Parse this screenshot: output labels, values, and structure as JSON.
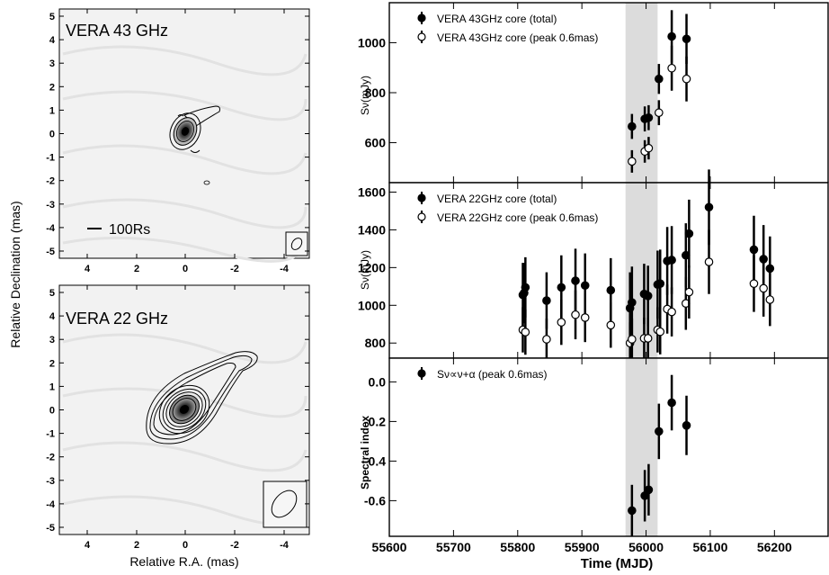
{
  "figure": {
    "maps": {
      "x_ticks": [
        "4",
        "2",
        "0",
        "-2",
        "-4"
      ],
      "y_ticks": [
        "5",
        "4",
        "3",
        "2",
        "1",
        "0",
        "-1",
        "-2",
        "-3",
        "-4",
        "-5"
      ],
      "xlabel": "Relative R.A. (mas)",
      "ylabel": "Relative Declination (mas)",
      "panels": [
        {
          "label": "VERA 43 GHz",
          "scalebar_label": "100Rs"
        },
        {
          "label": "VERA 22 GHz"
        }
      ]
    }
  },
  "chart_data": [
    {
      "type": "scatter",
      "panel": "flux-43ghz",
      "ylabel": "Sν(mJy)",
      "ylim": [
        440,
        1160
      ],
      "xlim": [
        55600,
        56285
      ],
      "y_ticks": [
        600,
        800,
        1000
      ],
      "shaded_x_range": [
        55968,
        56018
      ],
      "legend_position": "top-left",
      "series": [
        {
          "name": "VERA 43GHz core (total)",
          "marker": "filled",
          "points": [
            {
              "x": 55978,
              "y": 665,
              "err": 50
            },
            {
              "x": 55998,
              "y": 695,
              "err": 50
            },
            {
              "x": 56004,
              "y": 700,
              "err": 50
            },
            {
              "x": 56020,
              "y": 855,
              "err": 60
            },
            {
              "x": 56040,
              "y": 1025,
              "err": 105
            },
            {
              "x": 56063,
              "y": 1015,
              "err": 100
            }
          ]
        },
        {
          "name": "VERA 43GHz core (peak 0.6mas)",
          "marker": "open",
          "points": [
            {
              "x": 55978,
              "y": 525,
              "err": 45
            },
            {
              "x": 55998,
              "y": 565,
              "err": 45
            },
            {
              "x": 56004,
              "y": 578,
              "err": 45
            },
            {
              "x": 56020,
              "y": 720,
              "err": 50
            },
            {
              "x": 56040,
              "y": 898,
              "err": 90
            },
            {
              "x": 56063,
              "y": 855,
              "err": 90
            }
          ]
        }
      ]
    },
    {
      "type": "scatter",
      "panel": "flux-22ghz",
      "ylabel": "Sν(mJy)",
      "ylim": [
        720,
        1650
      ],
      "xlim": [
        55600,
        56285
      ],
      "y_ticks": [
        800,
        1000,
        1200,
        1400,
        1600
      ],
      "shaded_x_range": [
        55968,
        56018
      ],
      "legend_position": "top-left",
      "series": [
        {
          "name": "VERA 22GHz core (total)",
          "marker": "filled",
          "points": [
            {
              "x": 55808,
              "y": 1055,
              "err": 170
            },
            {
              "x": 55810,
              "y": 1065,
              "err": 160
            },
            {
              "x": 55812,
              "y": 1095,
              "err": 160
            },
            {
              "x": 55845,
              "y": 1025,
              "err": 150
            },
            {
              "x": 55868,
              "y": 1095,
              "err": 170
            },
            {
              "x": 55890,
              "y": 1130,
              "err": 170
            },
            {
              "x": 55905,
              "y": 1105,
              "err": 170
            },
            {
              "x": 55945,
              "y": 1080,
              "err": 170
            },
            {
              "x": 55975,
              "y": 985,
              "err": 190
            },
            {
              "x": 55978,
              "y": 1015,
              "err": 190
            },
            {
              "x": 55997,
              "y": 1060,
              "err": 160
            },
            {
              "x": 56003,
              "y": 1050,
              "err": 160
            },
            {
              "x": 56018,
              "y": 1110,
              "err": 180
            },
            {
              "x": 56022,
              "y": 1115,
              "err": 180
            },
            {
              "x": 56033,
              "y": 1235,
              "err": 180
            },
            {
              "x": 56040,
              "y": 1240,
              "err": 180
            },
            {
              "x": 56062,
              "y": 1265,
              "err": 170
            },
            {
              "x": 56067,
              "y": 1380,
              "err": 180
            },
            {
              "x": 56098,
              "y": 1520,
              "err": 200
            },
            {
              "x": 56168,
              "y": 1295,
              "err": 180
            },
            {
              "x": 56183,
              "y": 1245,
              "err": 180
            },
            {
              "x": 56193,
              "y": 1195,
              "err": 170
            }
          ]
        },
        {
          "name": "VERA 22GHz core (peak 0.6mas)",
          "marker": "open",
          "points": [
            {
              "x": 55808,
              "y": 870,
              "err": 120
            },
            {
              "x": 55812,
              "y": 858,
              "err": 120
            },
            {
              "x": 55845,
              "y": 820,
              "err": 110
            },
            {
              "x": 55868,
              "y": 910,
              "err": 120
            },
            {
              "x": 55890,
              "y": 950,
              "err": 130
            },
            {
              "x": 55905,
              "y": 935,
              "err": 130
            },
            {
              "x": 55945,
              "y": 895,
              "err": 120
            },
            {
              "x": 55975,
              "y": 800,
              "err": 110
            },
            {
              "x": 55978,
              "y": 820,
              "err": 110
            },
            {
              "x": 55997,
              "y": 825,
              "err": 110
            },
            {
              "x": 56003,
              "y": 825,
              "err": 110
            },
            {
              "x": 56018,
              "y": 870,
              "err": 120
            },
            {
              "x": 56022,
              "y": 860,
              "err": 120
            },
            {
              "x": 56033,
              "y": 980,
              "err": 130
            },
            {
              "x": 56040,
              "y": 965,
              "err": 130
            },
            {
              "x": 56062,
              "y": 1010,
              "err": 140
            },
            {
              "x": 56067,
              "y": 1070,
              "err": 140
            },
            {
              "x": 56098,
              "y": 1230,
              "err": 170
            },
            {
              "x": 56168,
              "y": 1115,
              "err": 150
            },
            {
              "x": 56183,
              "y": 1090,
              "err": 150
            },
            {
              "x": 56193,
              "y": 1030,
              "err": 140
            }
          ]
        }
      ]
    },
    {
      "type": "scatter",
      "panel": "spectral-index",
      "ylabel": "Spectral index",
      "xlabel": "Time (MJD)",
      "ylim": [
        -0.78,
        0.12
      ],
      "xlim": [
        55600,
        56285
      ],
      "x_ticks": [
        55600,
        55700,
        55800,
        55900,
        56000,
        56100,
        56200
      ],
      "y_ticks": [
        0.0,
        -0.2,
        -0.4,
        -0.6
      ],
      "y_tick_labels": [
        "0.0",
        "-0.2",
        "-0.4",
        "-0.6"
      ],
      "shaded_x_range": [
        55968,
        56018
      ],
      "legend_position": "top-left",
      "series": [
        {
          "name": "Sν∝ν+α (peak 0.6mas)",
          "marker": "filled",
          "points": [
            {
              "x": 55978,
              "y": -0.65,
              "err": 0.13
            },
            {
              "x": 55998,
              "y": -0.575,
              "err": 0.13
            },
            {
              "x": 56004,
              "y": -0.545,
              "err": 0.13
            },
            {
              "x": 56020,
              "y": -0.25,
              "err": 0.14
            },
            {
              "x": 56040,
              "y": -0.105,
              "err": 0.14
            },
            {
              "x": 56063,
              "y": -0.22,
              "err": 0.15
            }
          ]
        }
      ]
    }
  ],
  "colors": {
    "shade": "#dcdcdc",
    "map_background": "#f2f2f2",
    "axis": "#000000"
  }
}
